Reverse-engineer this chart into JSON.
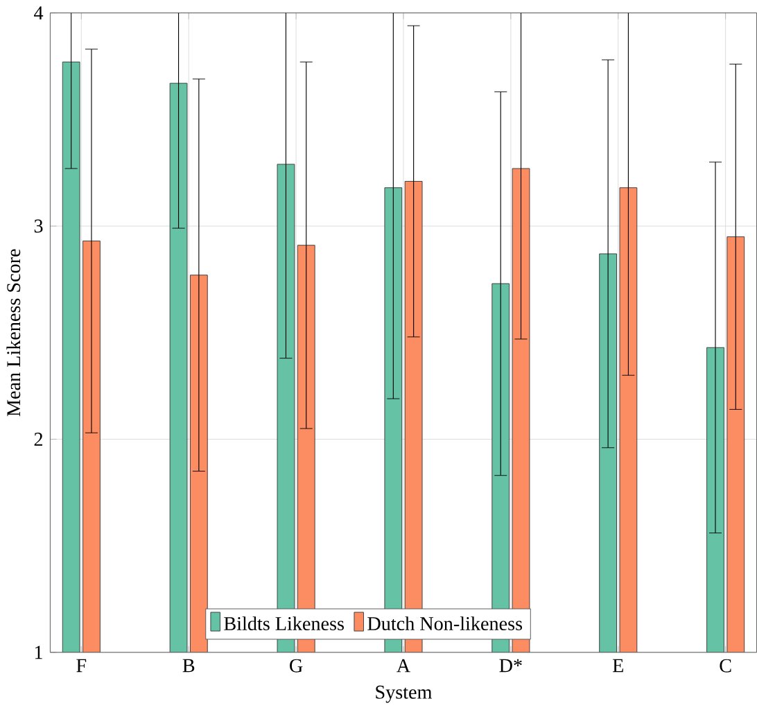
{
  "chart_data": {
    "type": "bar",
    "xlabel": "System",
    "ylabel": "Mean Likeness Score",
    "categories": [
      "F",
      "B",
      "G",
      "A",
      "D*",
      "E",
      "C"
    ],
    "series": [
      {
        "name": "Bildts Likeness",
        "color": "#66c2a5",
        "values": [
          3.77,
          3.67,
          3.29,
          3.18,
          2.73,
          2.87,
          2.43
        ],
        "errors": [
          0.5,
          0.68,
          0.91,
          0.99,
          0.9,
          0.91,
          0.87
        ]
      },
      {
        "name": "Dutch Non-likeness",
        "color": "#fc8d62",
        "values": [
          2.93,
          2.77,
          2.91,
          3.21,
          3.27,
          3.18,
          2.95
        ],
        "errors": [
          0.9,
          0.92,
          0.86,
          0.73,
          0.8,
          0.88,
          0.81
        ]
      }
    ],
    "ylim": [
      1,
      4
    ],
    "yticks": [
      1,
      2,
      3,
      4
    ],
    "grid": true,
    "legend": "bottom"
  }
}
